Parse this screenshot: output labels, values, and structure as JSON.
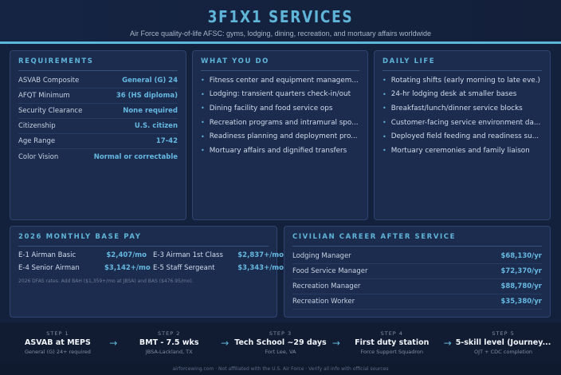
{
  "header": {
    "title": "3F1X1 SERVICES",
    "subtitle": "Air Force quality-of-life AFSC: gyms, lodging, dining, recreation, and mortuary affairs worldwide"
  },
  "requirements": {
    "title": "REQUIREMENTS",
    "rows": [
      {
        "k": "ASVAB Composite",
        "v": "General (G) 24"
      },
      {
        "k": "AFQT Minimum",
        "v": "36 (HS diploma)"
      },
      {
        "k": "Security Clearance",
        "v": "None required"
      },
      {
        "k": "Citizenship",
        "v": "U.S. citizen"
      },
      {
        "k": "Age Range",
        "v": "17-42"
      },
      {
        "k": "Color Vision",
        "v": "Normal or correctable"
      }
    ]
  },
  "what_you_do": {
    "title": "WHAT YOU DO",
    "items": [
      "Fitness center and equipment managem...",
      "Lodging: transient quarters check-in/out",
      "Dining facility and food service ops",
      "Recreation programs and intramural spo...",
      "Readiness planning and deployment pro...",
      "Mortuary affairs and dignified transfers"
    ]
  },
  "daily_life": {
    "title": "DAILY LIFE",
    "items": [
      "Rotating shifts (early morning to late eve.)",
      "24-hr lodging desk at smaller bases",
      "Breakfast/lunch/dinner service blocks",
      "Customer-facing service environment da...",
      "Deployed field feeding and readiness su...",
      "Mortuary ceremonies and family liaison"
    ]
  },
  "pay": {
    "title": "2026 MONTHLY BASE PAY",
    "rows": [
      {
        "k": "E-1 Airman Basic",
        "v": "$2,407/mo"
      },
      {
        "k": "E-3 Airman 1st Class",
        "v": "$2,837+/mo"
      },
      {
        "k": "E-4 Senior Airman",
        "v": "$3,142+/mo"
      },
      {
        "k": "E-5 Staff Sergeant",
        "v": "$3,343+/mo"
      }
    ],
    "note": "2026 DFAS rates. Add BAH ($1,359+/mo at JBSA) and BAS ($476.95/mo)."
  },
  "civilian": {
    "title": "CIVILIAN CAREER AFTER SERVICE",
    "rows": [
      {
        "k": "Lodging Manager",
        "v": "$68,130/yr"
      },
      {
        "k": "Food Service Manager",
        "v": "$72,370/yr"
      },
      {
        "k": "Recreation Manager",
        "v": "$88,780/yr"
      },
      {
        "k": "Recreation Worker",
        "v": "$35,380/yr"
      }
    ]
  },
  "steps": [
    {
      "n": "STEP 1",
      "t": "ASVAB at MEPS",
      "s": "General (G) 24+ required"
    },
    {
      "n": "STEP 2",
      "t": "BMT - 7.5 wks",
      "s": "JBSA-Lackland, TX"
    },
    {
      "n": "STEP 3",
      "t": "Tech School ~29 days",
      "s": "Fort Lee, VA"
    },
    {
      "n": "STEP 4",
      "t": "First duty station",
      "s": "Force Support Squadron"
    },
    {
      "n": "STEP 5",
      "t": "5-skill level (Journey...",
      "s": "OJT + CDC completion"
    }
  ],
  "arrow": "→",
  "footer": "airforcewing.com · Not affiliated with the U.S. Air Force · Verify all info with official sources"
}
